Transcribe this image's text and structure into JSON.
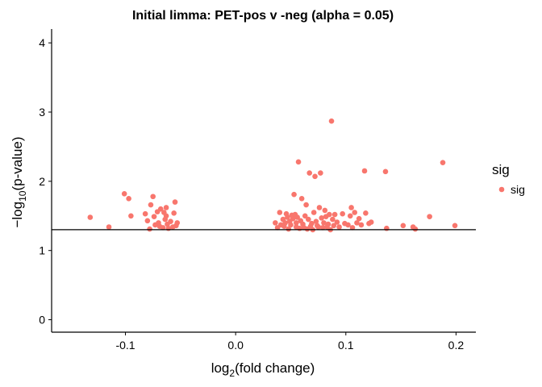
{
  "chart_data": {
    "type": "scatter",
    "title": "Initial limma: PET-pos v -neg (alpha = 0.05)",
    "xlabel": {
      "prefix": "log",
      "sub": "2",
      "suffix": "(fold change)"
    },
    "ylabel": {
      "prefix": "−log",
      "sub": "10",
      "suffix": "(p-value)"
    },
    "xlim": [
      -0.167,
      0.218
    ],
    "ylim": [
      -0.18,
      4.2
    ],
    "x_ticks": [
      -0.1,
      0.0,
      0.1,
      0.2
    ],
    "x_tick_labels": [
      "-0.1",
      "0.0",
      "0.1",
      "0.2"
    ],
    "y_ticks": [
      0,
      1,
      2,
      3,
      4
    ],
    "y_tick_labels": [
      "0",
      "1",
      "2",
      "3",
      "4"
    ],
    "hline": 1.301,
    "grid": false,
    "legend": {
      "title": "sig",
      "position": "right",
      "entries": [
        {
          "label": "sig",
          "color": "#F8766D"
        }
      ]
    },
    "series": [
      {
        "name": "sig",
        "color": "#F8766D",
        "points": [
          [
            -0.132,
            1.48
          ],
          [
            -0.115,
            1.34
          ],
          [
            -0.101,
            1.82
          ],
          [
            -0.097,
            1.75
          ],
          [
            -0.095,
            1.5
          ],
          [
            -0.082,
            1.53
          ],
          [
            -0.08,
            1.43
          ],
          [
            -0.078,
            1.31
          ],
          [
            -0.077,
            1.66
          ],
          [
            -0.075,
            1.78
          ],
          [
            -0.074,
            1.49
          ],
          [
            -0.073,
            1.37
          ],
          [
            -0.071,
            1.56
          ],
          [
            -0.07,
            1.4
          ],
          [
            -0.069,
            1.35
          ],
          [
            -0.068,
            1.6
          ],
          [
            -0.066,
            1.33
          ],
          [
            -0.065,
            1.55
          ],
          [
            -0.064,
            1.45
          ],
          [
            -0.063,
            1.62
          ],
          [
            -0.063,
            1.5
          ],
          [
            -0.062,
            1.38
          ],
          [
            -0.061,
            1.32
          ],
          [
            -0.059,
            1.42
          ],
          [
            -0.057,
            1.34
          ],
          [
            -0.056,
            1.54
          ],
          [
            -0.055,
            1.7
          ],
          [
            -0.054,
            1.36
          ],
          [
            -0.053,
            1.4
          ],
          [
            0.036,
            1.4
          ],
          [
            0.038,
            1.33
          ],
          [
            0.04,
            1.55
          ],
          [
            0.041,
            1.37
          ],
          [
            0.043,
            1.45
          ],
          [
            0.044,
            1.35
          ],
          [
            0.045,
            1.4
          ],
          [
            0.046,
            1.53
          ],
          [
            0.047,
            1.48
          ],
          [
            0.048,
            1.31
          ],
          [
            0.049,
            1.42
          ],
          [
            0.05,
            1.37
          ],
          [
            0.051,
            1.51
          ],
          [
            0.052,
            1.46
          ],
          [
            0.053,
            1.81
          ],
          [
            0.054,
            1.52
          ],
          [
            0.055,
            1.4
          ],
          [
            0.055,
            1.34
          ],
          [
            0.056,
            1.48
          ],
          [
            0.057,
            2.28
          ],
          [
            0.058,
            1.32
          ],
          [
            0.059,
            1.43
          ],
          [
            0.06,
            1.75
          ],
          [
            0.061,
            1.38
          ],
          [
            0.062,
            1.33
          ],
          [
            0.063,
            1.5
          ],
          [
            0.064,
            1.66
          ],
          [
            0.065,
            1.31
          ],
          [
            0.066,
            1.45
          ],
          [
            0.067,
            2.12
          ],
          [
            0.068,
            1.35
          ],
          [
            0.069,
            1.39
          ],
          [
            0.07,
            1.3
          ],
          [
            0.071,
            1.55
          ],
          [
            0.072,
            2.07
          ],
          [
            0.073,
            1.42
          ],
          [
            0.074,
            1.36
          ],
          [
            0.075,
            1.34
          ],
          [
            0.076,
            1.62
          ],
          [
            0.077,
            2.12
          ],
          [
            0.078,
            1.47
          ],
          [
            0.079,
            1.33
          ],
          [
            0.08,
            1.4
          ],
          [
            0.081,
            1.58
          ],
          [
            0.082,
            1.49
          ],
          [
            0.083,
            1.34
          ],
          [
            0.084,
            1.38
          ],
          [
            0.085,
            1.52
          ],
          [
            0.086,
            1.3
          ],
          [
            0.087,
            2.87
          ],
          [
            0.088,
            1.45
          ],
          [
            0.089,
            1.36
          ],
          [
            0.09,
            1.52
          ],
          [
            0.092,
            1.41
          ],
          [
            0.094,
            1.34
          ],
          [
            0.097,
            1.53
          ],
          [
            0.099,
            1.39
          ],
          [
            0.102,
            1.37
          ],
          [
            0.104,
            1.5
          ],
          [
            0.105,
            1.62
          ],
          [
            0.106,
            1.33
          ],
          [
            0.108,
            1.55
          ],
          [
            0.11,
            1.4
          ],
          [
            0.112,
            1.46
          ],
          [
            0.114,
            1.37
          ],
          [
            0.117,
            2.15
          ],
          [
            0.118,
            1.54
          ],
          [
            0.121,
            1.39
          ],
          [
            0.123,
            1.41
          ],
          [
            0.136,
            2.14
          ],
          [
            0.137,
            1.32
          ],
          [
            0.152,
            1.36
          ],
          [
            0.161,
            1.34
          ],
          [
            0.163,
            1.31
          ],
          [
            0.176,
            1.49
          ],
          [
            0.188,
            2.27
          ],
          [
            0.199,
            1.36
          ]
        ]
      }
    ]
  }
}
